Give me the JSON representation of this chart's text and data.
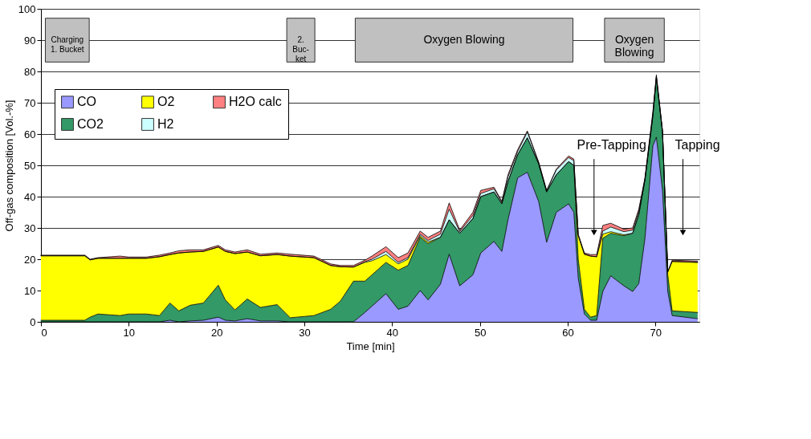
{
  "chart_data": {
    "type": "area",
    "stacked": true,
    "xlabel": "Time [min]",
    "ylabel": "Off-gas composition [Vol.-%]",
    "x": [
      0,
      5,
      5.6,
      6.5,
      9,
      10,
      12,
      13.5,
      14.7,
      15.7,
      17,
      18.5,
      20.2,
      21,
      22.1,
      23.5,
      25,
      26.9,
      28.4,
      31.1,
      33,
      34.1,
      35.6,
      36.9,
      37.7,
      39.3,
      40.7,
      41.8,
      43.2,
      44.1,
      45.5,
      46.5,
      47.7,
      49.2,
      50.1,
      51.6,
      52.5,
      53.2,
      54.3,
      55.4,
      56.7,
      57.6,
      58.7,
      60.1,
      60.7,
      61.2,
      61.9,
      62.6,
      63.3,
      64.0,
      64.9,
      66.4,
      67.4,
      68.1,
      68.8,
      69.7,
      70.1,
      70.8,
      71.4,
      71.9,
      74.8
    ],
    "series": [
      {
        "name": "CO",
        "color": "#9999ff",
        "values": [
          0,
          0,
          0,
          0,
          0,
          0,
          0,
          0,
          0.5,
          0,
          0.3,
          0.5,
          1.5,
          0.5,
          0.3,
          1,
          0.3,
          0.3,
          0,
          0,
          0,
          0,
          0,
          3,
          5,
          9,
          4,
          5,
          10,
          7,
          12,
          21.6,
          11.5,
          15,
          22,
          25.7,
          22.5,
          32.6,
          46,
          47.8,
          38.4,
          25.4,
          35,
          37.7,
          35,
          14,
          2.5,
          0.5,
          0.5,
          9.7,
          14.7,
          11.5,
          9.7,
          12.2,
          26.7,
          56.2,
          59,
          42,
          9.7,
          2,
          1
        ]
      },
      {
        "name": "CO2",
        "color": "#339966",
        "values": [
          0.5,
          0.5,
          1.5,
          2.5,
          2,
          2.5,
          2.5,
          2,
          5.5,
          3.5,
          5,
          5.5,
          10.2,
          6.5,
          3.5,
          6.3,
          4.3,
          5.2,
          1.3,
          2,
          4,
          6.6,
          13,
          10,
          10,
          10,
          12.5,
          13,
          17,
          18,
          15,
          11,
          16.8,
          18,
          18,
          15.8,
          15.2,
          12.2,
          7.4,
          11,
          12,
          16.1,
          12,
          13.5,
          15,
          6,
          1.5,
          1,
          1.5,
          17,
          13.6,
          16,
          18.6,
          22.1,
          18.6,
          9.5,
          19,
          18.6,
          5.3,
          1.5,
          2
        ]
      },
      {
        "name": "O2",
        "color": "#ffff00",
        "values": [
          20.6,
          20.6,
          18.3,
          17.8,
          18.3,
          17.8,
          17.8,
          18.8,
          15.5,
          18.5,
          17,
          16.5,
          12.2,
          15.5,
          18,
          15,
          16.5,
          16,
          19.7,
          18.5,
          14,
          11,
          4.5,
          6,
          4.5,
          2.5,
          2,
          2,
          0.5,
          0.5,
          0,
          0,
          0,
          0,
          0,
          0,
          0,
          0,
          0,
          0,
          0,
          0,
          0,
          0,
          0,
          7.5,
          17.6,
          19.5,
          18.8,
          1.3,
          0.5,
          0.3,
          0,
          0,
          0,
          0,
          0,
          0,
          1,
          15.8,
          16
        ]
      },
      {
        "name": "H2",
        "color": "#ccffff",
        "values": [
          0,
          0,
          0,
          0,
          0,
          0,
          0,
          0,
          0,
          0,
          0,
          0,
          0,
          0,
          0,
          0,
          0,
          0,
          0,
          0,
          0,
          0,
          0,
          0.2,
          0.5,
          1,
          0.5,
          0.5,
          0.5,
          0.5,
          1,
          3.4,
          0.5,
          1,
          1,
          1,
          0.5,
          1.5,
          1,
          1.8,
          0.4,
          0.3,
          1.5,
          1.3,
          1.5,
          0.2,
          0,
          0,
          0,
          1,
          1.5,
          1,
          1,
          1,
          0.4,
          0.8,
          0.5,
          0.2,
          0,
          0,
          0
        ]
      },
      {
        "name": "H2O calc",
        "color": "#ff8080",
        "values": [
          0.2,
          0.2,
          0.2,
          0.2,
          0.7,
          0.4,
          0.4,
          0.5,
          0.5,
          0.7,
          0.7,
          0.5,
          0.5,
          0.5,
          0.5,
          0.7,
          0.5,
          0.5,
          0.6,
          0.5,
          0.5,
          0.4,
          0.5,
          0.5,
          1,
          1.5,
          1.5,
          1.5,
          1,
          1,
          1,
          2,
          0.5,
          1,
          1,
          0.5,
          0.3,
          0.7,
          0.6,
          0.4,
          0.2,
          0.2,
          0.3,
          0.5,
          0.5,
          0.3,
          0.4,
          0.5,
          0.7,
          1.8,
          1.2,
          0.8,
          0.7,
          0.7,
          0.3,
          0.5,
          0.4,
          0.2,
          0,
          0.4,
          0.4
        ]
      }
    ],
    "xlim": [
      0,
      75
    ],
    "xticks": [
      0,
      10,
      20,
      30,
      40,
      50,
      60,
      70
    ],
    "ylim": [
      0,
      100
    ],
    "yticks": [
      0,
      10,
      20,
      30,
      40,
      50,
      60,
      70,
      80,
      90,
      100
    ],
    "grid": "y",
    "legend": "top left",
    "bands": [
      {
        "axis": "x",
        "from": 0.5,
        "to": 5.5,
        "label": "Charging\n1. Bucket",
        "color": "#c0c0c0"
      },
      {
        "axis": "x",
        "from": 28,
        "to": 31.2,
        "label": "2.\nBuc-\nket",
        "color": "#c0c0c0"
      },
      {
        "axis": "x",
        "from": 35.8,
        "to": 60.6,
        "label": "Oxygen Blowing",
        "color": "#c0c0c0"
      },
      {
        "axis": "x",
        "from": 64.2,
        "to": 71.0,
        "label": "Oxygen\nBlowing",
        "color": "#c0c0c0"
      }
    ],
    "annotations": [
      "Pre-Tapping",
      "Tapping"
    ]
  }
}
